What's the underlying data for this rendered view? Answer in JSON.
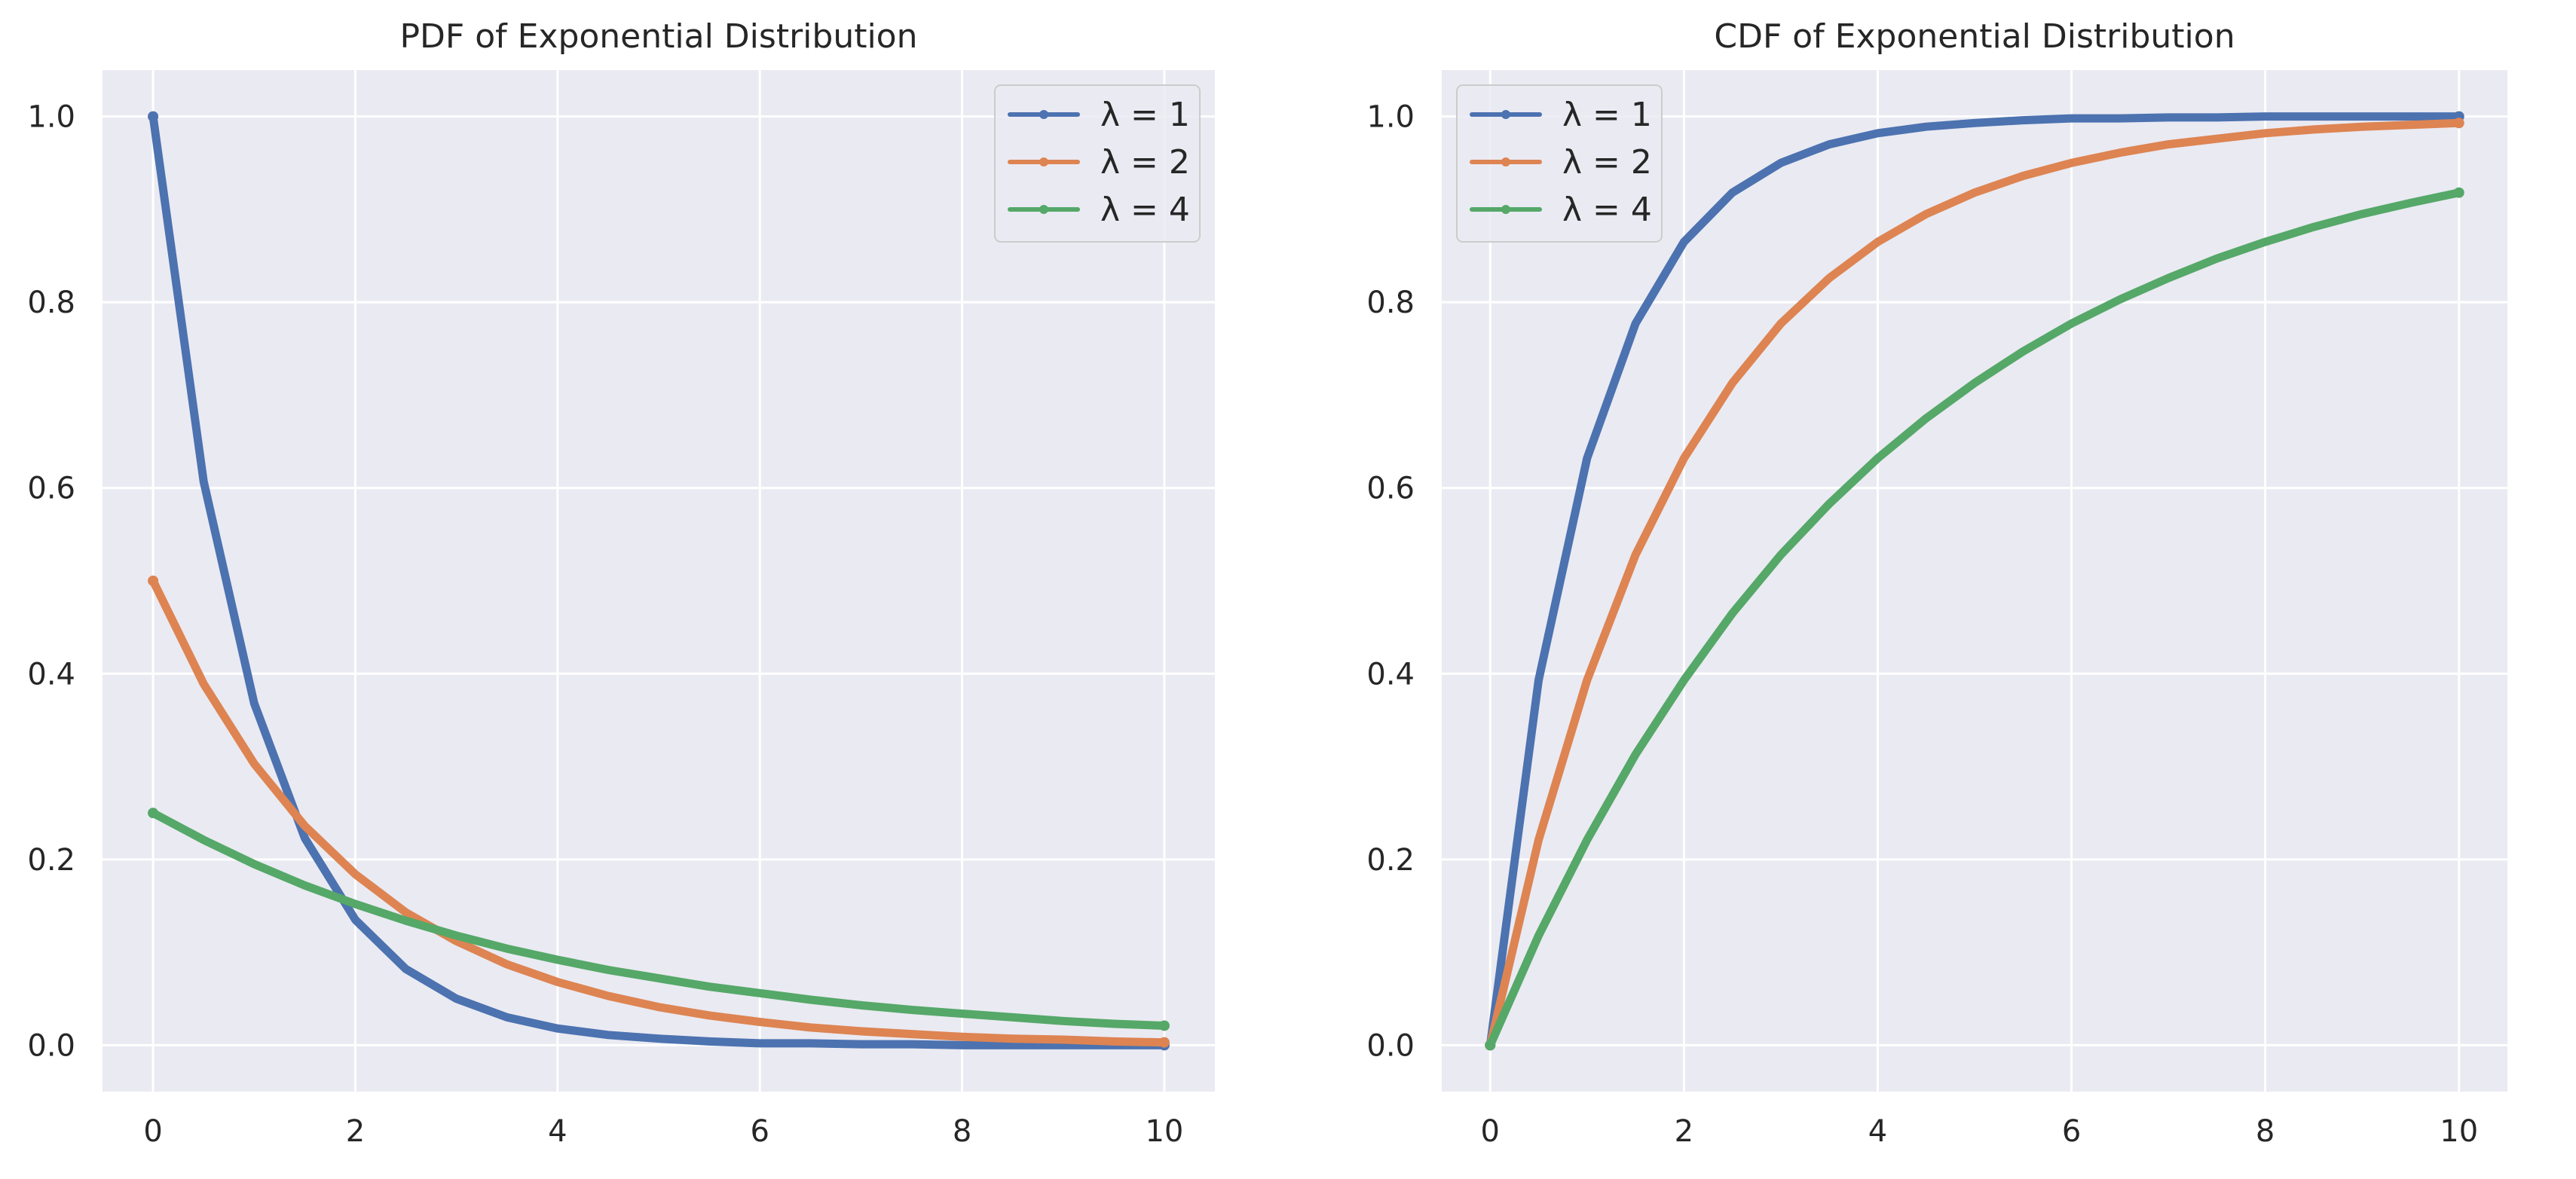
{
  "figure": {
    "background": "#ffffff",
    "axes_facecolor": "#eaeaf2",
    "grid_color": "#ffffff"
  },
  "chart_data": [
    {
      "id": "pdf",
      "type": "line",
      "title": "PDF of Exponential Distribution",
      "xlabel": "",
      "ylabel": "",
      "xlim": [
        -0.5,
        10.5
      ],
      "ylim": [
        -0.05,
        1.05
      ],
      "xticks": [
        0,
        2,
        4,
        6,
        8,
        10
      ],
      "xtick_labels": [
        "0",
        "2",
        "4",
        "6",
        "8",
        "10"
      ],
      "yticks": [
        0.0,
        0.2,
        0.4,
        0.6,
        0.8,
        1.0
      ],
      "ytick_labels": [
        "0.0",
        "0.2",
        "0.4",
        "0.6",
        "0.8",
        "1.0"
      ],
      "grid": true,
      "legend_position": "top-right",
      "x": [
        0,
        0.5,
        1,
        1.5,
        2,
        2.5,
        3,
        3.5,
        4,
        4.5,
        5,
        5.5,
        6,
        6.5,
        7,
        7.5,
        8,
        8.5,
        9,
        9.5,
        10
      ],
      "series": [
        {
          "name": "λ = 1",
          "color": "#4c72b0",
          "values": [
            1.0,
            0.607,
            0.368,
            0.223,
            0.135,
            0.082,
            0.05,
            0.03,
            0.018,
            0.011,
            0.007,
            0.004,
            0.002,
            0.002,
            0.001,
            0.001,
            0.0,
            0.0,
            0.0,
            0.0,
            0.0
          ]
        },
        {
          "name": "λ = 2",
          "color": "#dd8452",
          "values": [
            0.5,
            0.389,
            0.303,
            0.236,
            0.184,
            0.143,
            0.112,
            0.087,
            0.068,
            0.053,
            0.041,
            0.032,
            0.025,
            0.019,
            0.015,
            0.012,
            0.009,
            0.007,
            0.006,
            0.004,
            0.003
          ]
        },
        {
          "name": "λ = 4",
          "color": "#55a868",
          "values": [
            0.25,
            0.221,
            0.195,
            0.172,
            0.152,
            0.134,
            0.118,
            0.104,
            0.092,
            0.081,
            0.072,
            0.063,
            0.056,
            0.049,
            0.043,
            0.038,
            0.034,
            0.03,
            0.026,
            0.023,
            0.021
          ]
        }
      ]
    },
    {
      "id": "cdf",
      "type": "line",
      "title": "CDF of Exponential Distribution",
      "xlabel": "",
      "ylabel": "",
      "xlim": [
        -0.5,
        10.5
      ],
      "ylim": [
        -0.05,
        1.05
      ],
      "xticks": [
        0,
        2,
        4,
        6,
        8,
        10
      ],
      "xtick_labels": [
        "0",
        "2",
        "4",
        "6",
        "8",
        "10"
      ],
      "yticks": [
        0.0,
        0.2,
        0.4,
        0.6,
        0.8,
        1.0
      ],
      "ytick_labels": [
        "0.0",
        "0.2",
        "0.4",
        "0.6",
        "0.8",
        "1.0"
      ],
      "grid": true,
      "legend_position": "top-left",
      "x": [
        0,
        0.5,
        1,
        1.5,
        2,
        2.5,
        3,
        3.5,
        4,
        4.5,
        5,
        5.5,
        6,
        6.5,
        7,
        7.5,
        8,
        8.5,
        9,
        9.5,
        10
      ],
      "series": [
        {
          "name": "λ = 1",
          "color": "#4c72b0",
          "values": [
            0.0,
            0.393,
            0.632,
            0.777,
            0.865,
            0.918,
            0.95,
            0.97,
            0.982,
            0.989,
            0.993,
            0.996,
            0.998,
            0.998,
            0.999,
            0.999,
            1.0,
            1.0,
            1.0,
            1.0,
            1.0
          ]
        },
        {
          "name": "λ = 2",
          "color": "#dd8452",
          "values": [
            0.0,
            0.221,
            0.393,
            0.528,
            0.632,
            0.713,
            0.777,
            0.826,
            0.865,
            0.895,
            0.918,
            0.936,
            0.95,
            0.961,
            0.97,
            0.976,
            0.982,
            0.986,
            0.989,
            0.991,
            0.993
          ]
        },
        {
          "name": "λ = 4",
          "color": "#55a868",
          "values": [
            0.0,
            0.118,
            0.221,
            0.313,
            0.393,
            0.465,
            0.528,
            0.583,
            0.632,
            0.675,
            0.713,
            0.747,
            0.777,
            0.803,
            0.826,
            0.847,
            0.865,
            0.881,
            0.895,
            0.907,
            0.918
          ]
        }
      ]
    }
  ]
}
